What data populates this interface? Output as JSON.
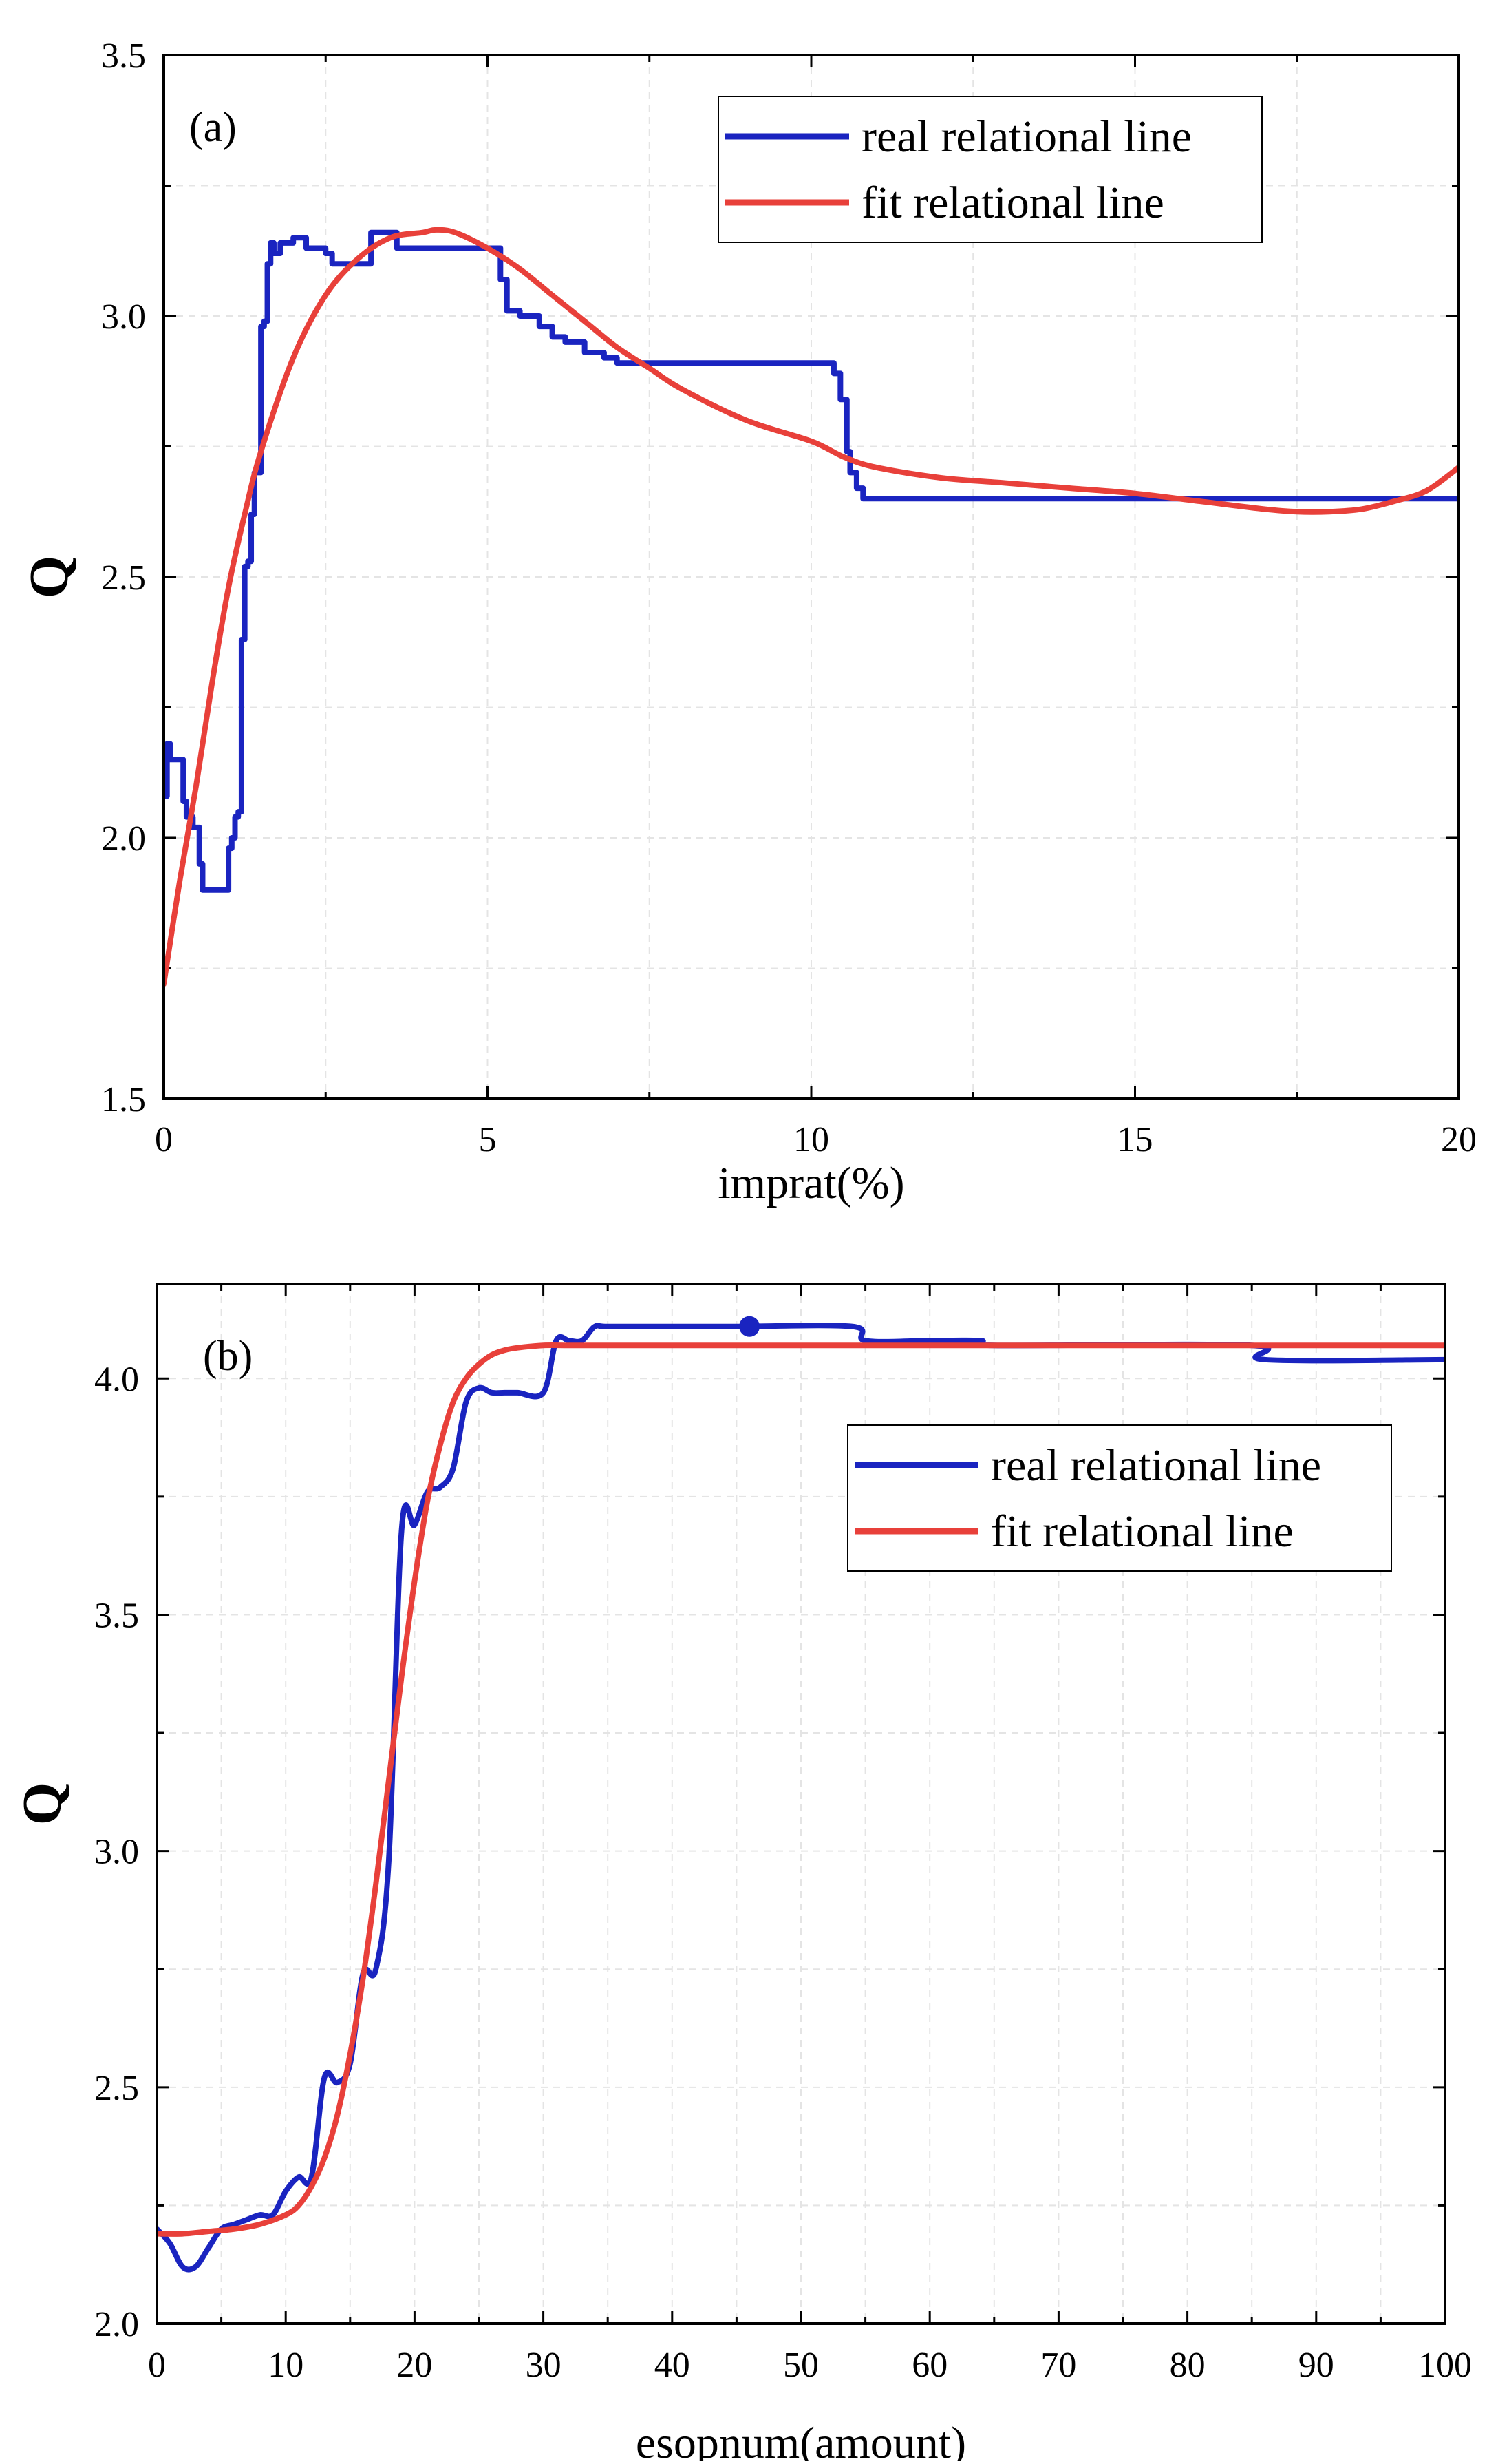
{
  "chart_data": [
    {
      "type": "line",
      "panel_label": "(a)",
      "xlabel": "imprat(%)",
      "ylabel": "Q",
      "xlim": [
        0,
        20
      ],
      "ylim": [
        1.5,
        3.5
      ],
      "x_ticks": [
        0,
        5,
        10,
        15,
        20
      ],
      "y_ticks": [
        1.5,
        2.0,
        2.5,
        3.0,
        3.5
      ],
      "x_tick_labels": [
        "0",
        "5",
        "10",
        "15",
        "20"
      ],
      "y_tick_labels": [
        "1.5",
        "2.0",
        "2.5",
        "3.0",
        "3.5"
      ],
      "grid": true,
      "legend_position": "top-right",
      "series": [
        {
          "name": "real relational line",
          "color": "#1a24c0",
          "step": true,
          "x": [
            0,
            0.05,
            0.1,
            0.2,
            0.3,
            0.35,
            0.45,
            0.55,
            0.6,
            0.7,
            1.0,
            1.05,
            1.1,
            1.15,
            1.2,
            1.25,
            1.3,
            1.35,
            1.4,
            1.5,
            1.55,
            1.6,
            1.65,
            1.7,
            1.8,
            2.0,
            2.2,
            2.5,
            2.6,
            3.2,
            3.6,
            4.5,
            5.0,
            5.2,
            5.3,
            5.5,
            5.8,
            6.0,
            6.2,
            6.5,
            6.8,
            7.0,
            10.3,
            10.35,
            10.45,
            10.55,
            10.6,
            10.7,
            10.8,
            20
          ],
          "y": [
            2.08,
            2.18,
            2.15,
            2.15,
            2.07,
            2.04,
            2.02,
            1.95,
            1.9,
            1.9,
            1.98,
            2.0,
            2.04,
            2.05,
            2.38,
            2.52,
            2.53,
            2.62,
            2.7,
            2.98,
            2.99,
            3.1,
            3.14,
            3.12,
            3.14,
            3.15,
            3.13,
            3.12,
            3.1,
            3.16,
            3.13,
            3.13,
            3.13,
            3.07,
            3.01,
            3.0,
            2.98,
            2.96,
            2.95,
            2.93,
            2.92,
            2.91,
            2.91,
            2.89,
            2.84,
            2.74,
            2.7,
            2.67,
            2.65,
            2.65
          ]
        },
        {
          "name": "fit relational line",
          "color": "#e8403a",
          "step": false,
          "x": [
            0,
            0.25,
            0.5,
            0.75,
            1.0,
            1.25,
            1.5,
            2.0,
            2.5,
            3.0,
            3.5,
            4.0,
            4.2,
            4.5,
            5.0,
            5.5,
            6.0,
            6.5,
            7.0,
            7.5,
            8.0,
            9.0,
            10.0,
            10.5,
            11.0,
            12.0,
            13.0,
            14.0,
            15.0,
            16.0,
            17.0,
            17.5,
            18.0,
            18.5,
            19.0,
            19.5,
            20.0
          ],
          "y": [
            1.72,
            1.92,
            2.1,
            2.3,
            2.48,
            2.62,
            2.74,
            2.92,
            3.04,
            3.11,
            3.15,
            3.16,
            3.165,
            3.16,
            3.13,
            3.09,
            3.04,
            2.99,
            2.94,
            2.9,
            2.86,
            2.8,
            2.76,
            2.73,
            2.71,
            2.69,
            2.68,
            2.67,
            2.66,
            2.645,
            2.63,
            2.625,
            2.625,
            2.63,
            2.645,
            2.665,
            2.71
          ]
        }
      ]
    },
    {
      "type": "line",
      "panel_label": "(b)",
      "xlabel": "esopnum(amount)",
      "ylabel": "Q",
      "xlim": [
        0,
        100
      ],
      "ylim": [
        2.0,
        4.2
      ],
      "x_ticks": [
        0,
        10,
        20,
        30,
        40,
        50,
        60,
        70,
        80,
        90,
        100
      ],
      "y_ticks": [
        2.0,
        2.5,
        3.0,
        3.5,
        4.0
      ],
      "x_tick_labels": [
        "0",
        "10",
        "20",
        "30",
        "40",
        "50",
        "60",
        "70",
        "80",
        "90",
        "100"
      ],
      "y_tick_labels": [
        "2.0",
        "2.5",
        "3.0",
        "3.5",
        "4.0"
      ],
      "grid": true,
      "legend_position": "center-right",
      "highlight_point": {
        "x": 46,
        "y": 4.11
      },
      "series": [
        {
          "name": "real relational line",
          "color": "#1a24c0",
          "step": false,
          "x": [
            0,
            1,
            2,
            3,
            4,
            5,
            6,
            7,
            8,
            9,
            10,
            11,
            12,
            13,
            14,
            15,
            16,
            17,
            18,
            19,
            20,
            21,
            22,
            23,
            24,
            25,
            26,
            27,
            28,
            30,
            31,
            32,
            33,
            34,
            35,
            40,
            45,
            54,
            55,
            60,
            64,
            65,
            85,
            86,
            100
          ],
          "y": [
            2.2,
            2.17,
            2.12,
            2.12,
            2.16,
            2.2,
            2.21,
            2.22,
            2.23,
            2.23,
            2.28,
            2.31,
            2.31,
            2.52,
            2.51,
            2.55,
            2.74,
            2.75,
            2.98,
            3.68,
            3.69,
            3.76,
            3.77,
            3.81,
            3.95,
            3.98,
            3.97,
            3.97,
            3.97,
            3.97,
            4.08,
            4.08,
            4.08,
            4.11,
            4.11,
            4.11,
            4.11,
            4.11,
            4.08,
            4.08,
            4.08,
            4.07,
            4.07,
            4.04,
            4.04
          ]
        },
        {
          "name": "fit relational line",
          "color": "#e8403a",
          "step": false,
          "x": [
            0,
            2,
            4,
            6,
            8,
            10,
            11,
            12,
            13,
            14,
            15,
            16,
            17,
            18,
            19,
            20,
            21,
            22,
            23,
            24,
            25,
            26,
            27,
            28,
            30,
            32,
            35,
            40,
            50,
            60,
            70,
            80,
            90,
            100
          ],
          "y": [
            2.19,
            2.19,
            2.195,
            2.2,
            2.21,
            2.23,
            2.25,
            2.29,
            2.35,
            2.44,
            2.57,
            2.73,
            2.93,
            3.15,
            3.37,
            3.57,
            3.74,
            3.86,
            3.95,
            4.0,
            4.03,
            4.05,
            4.06,
            4.065,
            4.07,
            4.07,
            4.07,
            4.07,
            4.07,
            4.07,
            4.07,
            4.07,
            4.07,
            4.07
          ]
        }
      ]
    }
  ]
}
